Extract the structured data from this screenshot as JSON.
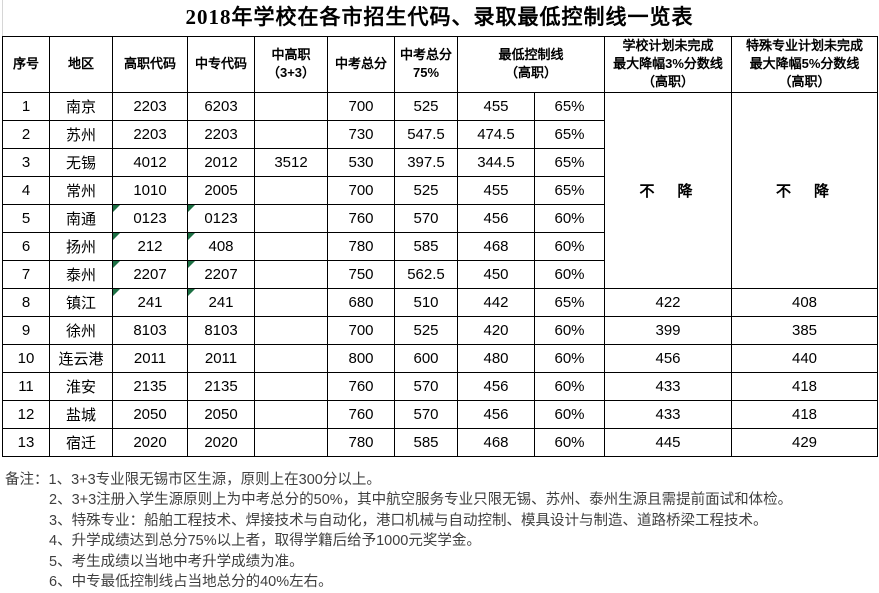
{
  "title": "2018年学校在各市招生代码、录取最低控制线一览表",
  "colors": {
    "border": "#000000",
    "note_text": "#3f3f3f",
    "triangle_green": "#1d7044"
  },
  "table": {
    "columns": [
      {
        "key": "no",
        "label": "序号"
      },
      {
        "key": "region",
        "label": "地区"
      },
      {
        "key": "gaozhi",
        "label": "高职代码"
      },
      {
        "key": "zhongzhuan",
        "label": "中专代码"
      },
      {
        "key": "zhonggao",
        "label": "中高职\n（3+3）"
      },
      {
        "key": "total",
        "label": "中考总分"
      },
      {
        "key": "pct75",
        "label": "中考总分\n75%"
      },
      {
        "key": "min",
        "label": "最低控制线\n（高职）",
        "colspan": 2
      },
      {
        "key": "school",
        "label": "学校计划未完成\n最大降幅3%分数线\n（高职）"
      },
      {
        "key": "special",
        "label": "特殊专业计划未完成\n最大降幅5%分数线\n（高职）"
      }
    ],
    "no_drop_label": "不　降",
    "no_drop_span_rows": 7,
    "rows": [
      {
        "no": "1",
        "region": "南京",
        "gaozhi": "2203",
        "zhongzhuan": "6203",
        "zhonggao": "",
        "total": "700",
        "pct75": "525",
        "min": "455",
        "minpct": "65%",
        "school": "",
        "special": "",
        "green": []
      },
      {
        "no": "2",
        "region": "苏州",
        "gaozhi": "2203",
        "zhongzhuan": "2203",
        "zhonggao": "",
        "total": "730",
        "pct75": "547.5",
        "min": "474.5",
        "minpct": "65%",
        "school": "",
        "special": "",
        "green": []
      },
      {
        "no": "3",
        "region": "无锡",
        "gaozhi": "4012",
        "zhongzhuan": "2012",
        "zhonggao": "3512",
        "total": "530",
        "pct75": "397.5",
        "min": "344.5",
        "minpct": "65%",
        "school": "",
        "special": "",
        "green": []
      },
      {
        "no": "4",
        "region": "常州",
        "gaozhi": "1010",
        "zhongzhuan": "2005",
        "zhonggao": "",
        "total": "700",
        "pct75": "525",
        "min": "455",
        "minpct": "65%",
        "school": "",
        "special": "",
        "green": []
      },
      {
        "no": "5",
        "region": "南通",
        "gaozhi": "0123",
        "zhongzhuan": "0123",
        "zhonggao": "",
        "total": "760",
        "pct75": "570",
        "min": "456",
        "minpct": "60%",
        "school": "",
        "special": "",
        "green": [
          "gaozhi",
          "zhongzhuan"
        ]
      },
      {
        "no": "6",
        "region": "扬州",
        "gaozhi": "212",
        "zhongzhuan": "408",
        "zhonggao": "",
        "total": "780",
        "pct75": "585",
        "min": "468",
        "minpct": "60%",
        "school": "",
        "special": "",
        "green": [
          "gaozhi",
          "zhongzhuan"
        ]
      },
      {
        "no": "7",
        "region": "泰州",
        "gaozhi": "2207",
        "zhongzhuan": "2207",
        "zhonggao": "",
        "total": "750",
        "pct75": "562.5",
        "min": "450",
        "minpct": "60%",
        "school": "",
        "special": "",
        "green": [
          "gaozhi",
          "zhongzhuan"
        ]
      },
      {
        "no": "8",
        "region": "镇江",
        "gaozhi": "241",
        "zhongzhuan": "241",
        "zhonggao": "",
        "total": "680",
        "pct75": "510",
        "min": "442",
        "minpct": "65%",
        "school": "422",
        "special": "408",
        "green": [
          "gaozhi",
          "zhongzhuan"
        ]
      },
      {
        "no": "9",
        "region": "徐州",
        "gaozhi": "8103",
        "zhongzhuan": "8103",
        "zhonggao": "",
        "total": "700",
        "pct75": "525",
        "min": "420",
        "minpct": "60%",
        "school": "399",
        "special": "385",
        "green": []
      },
      {
        "no": "10",
        "region": "连云港",
        "gaozhi": "2011",
        "zhongzhuan": "2011",
        "zhonggao": "",
        "total": "800",
        "pct75": "600",
        "min": "480",
        "minpct": "60%",
        "school": "456",
        "special": "440",
        "green": []
      },
      {
        "no": "11",
        "region": "淮安",
        "gaozhi": "2135",
        "zhongzhuan": "2135",
        "zhonggao": "",
        "total": "760",
        "pct75": "570",
        "min": "456",
        "minpct": "60%",
        "school": "433",
        "special": "418",
        "green": []
      },
      {
        "no": "12",
        "region": "盐城",
        "gaozhi": "2050",
        "zhongzhuan": "2050",
        "zhonggao": "",
        "total": "760",
        "pct75": "570",
        "min": "456",
        "minpct": "60%",
        "school": "433",
        "special": "418",
        "green": []
      },
      {
        "no": "13",
        "region": "宿迁",
        "gaozhi": "2020",
        "zhongzhuan": "2020",
        "zhonggao": "",
        "total": "780",
        "pct75": "585",
        "min": "468",
        "minpct": "60%",
        "school": "445",
        "special": "429",
        "green": []
      }
    ]
  },
  "notes": {
    "prefix": "备注：",
    "items": [
      "1、3+3专业限无锡市区生源，原则上在300分以上。",
      "2、3+3注册入学生源原则上为中考总分的50%，其中航空服务专业只限无锡、苏州、泰州生源且需提前面试和体检。",
      "3、特殊专业：船舶工程技术、焊接技术与自动化，港口机械与自动控制、模具设计与制造、道路桥梁工程技术。",
      "4、升学成绩达到总分75%以上者，取得学籍后给予1000元奖学金。",
      "5、考生成绩以当地中考升学成绩为准。",
      "6、中专最低控制线占当地总分的40%左右。"
    ]
  }
}
